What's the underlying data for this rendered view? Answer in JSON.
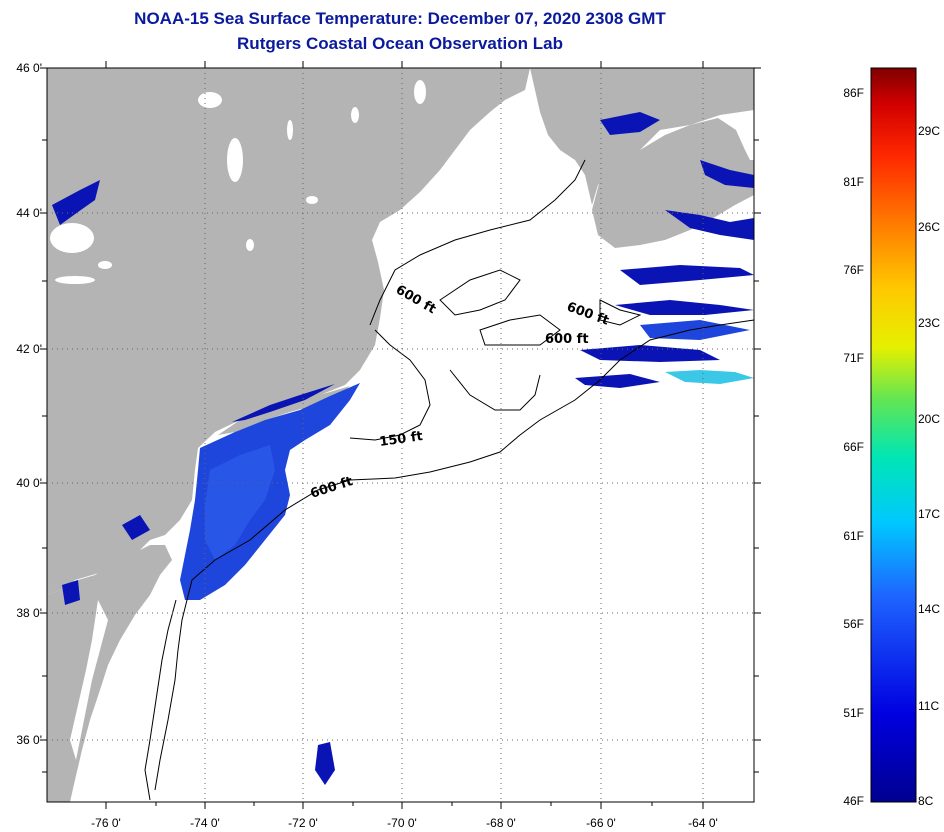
{
  "header": {
    "title": "NOAA-15 Sea Surface Temperature:  December 07, 2020 2308 GMT",
    "subtitle": "Rutgers Coastal Ocean Observation Lab"
  },
  "map": {
    "lat_labels": [
      "46 0'",
      "44 0'",
      "42 0'",
      "40 0'",
      "38 0'",
      "36 0'"
    ],
    "lon_labels": [
      "-76 0'",
      "-74 0'",
      "-72 0'",
      "-70 0'",
      "-68 0'",
      "-66 0'",
      "-64 0'"
    ],
    "contour_labels": [
      "600 ft",
      "600 ft",
      "600 ft",
      "150 ft",
      "600 ft"
    ],
    "colors": {
      "land": "#b4b4b4",
      "cloud": "#ffffff",
      "cold_water": "#1e46dc",
      "deep_water": "#0a14b4"
    }
  },
  "colorbar": {
    "fahrenheit_labels": [
      "86F",
      "81F",
      "76F",
      "71F",
      "66F",
      "61F",
      "56F",
      "51F",
      "46F"
    ],
    "celsius_labels": [
      "29C",
      "26C",
      "23C",
      "20C",
      "17C",
      "14C",
      "11C",
      "8C"
    ]
  }
}
